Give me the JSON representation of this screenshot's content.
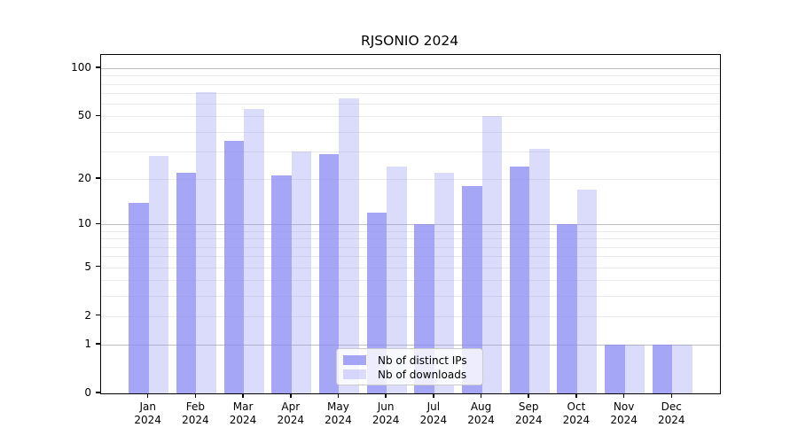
{
  "chart_data": {
    "type": "bar",
    "title": "RJSONIO 2024",
    "yscale": "log1p (positions proportional to log10(value+1))",
    "grid": true,
    "legend_position": "lower center inside plot",
    "background_color": "#ffffff",
    "x_tick_year": "2024",
    "x_tick_months": [
      "Jan",
      "Feb",
      "Mar",
      "Apr",
      "May",
      "Jun",
      "Jul",
      "Aug",
      "Sep",
      "Oct",
      "Nov",
      "Dec"
    ],
    "categories": [
      "Jan 2024",
      "Feb 2024",
      "Mar 2024",
      "Apr 2024",
      "May 2024",
      "Jun 2024",
      "Jul 2024",
      "Aug 2024",
      "Sep 2024",
      "Oct 2024",
      "Nov 2024",
      "Dec 2024"
    ],
    "series": [
      {
        "name": "Nb of distinct IPs",
        "color_solid": "#a6a6f4",
        "color_rgba": "rgba(133,133,244,0.73)",
        "values": [
          14,
          22,
          35,
          21,
          29,
          12,
          10,
          18,
          24,
          10,
          1,
          1
        ]
      },
      {
        "name": "Nb of downloads",
        "color_solid": "#dcdcf9",
        "color_rgba": "rgba(135,135,245,0.30)",
        "values": [
          28,
          71,
          56,
          30,
          65,
          24,
          22,
          50,
          31,
          17,
          1,
          1
        ]
      }
    ],
    "y_tick_labels": [
      0,
      1,
      2,
      5,
      10,
      20,
      50,
      100
    ],
    "y_gridlines_major": [
      1,
      10,
      100
    ],
    "y_gridlines_minor": [
      2,
      3,
      4,
      5,
      6,
      7,
      8,
      9,
      20,
      30,
      40,
      50,
      60,
      70,
      80,
      90
    ],
    "ylim": [
      0,
      121
    ],
    "grid_minor_color": "#ebebeb",
    "grid_major_color": "#c2c2c2",
    "axis_color": "#000000"
  }
}
